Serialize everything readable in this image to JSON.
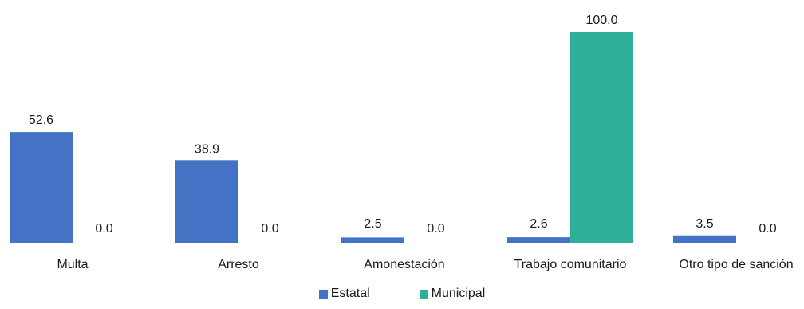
{
  "chart_data": {
    "type": "bar",
    "categories": [
      "Multa",
      "Arresto",
      "Amonestación",
      "Trabajo comunitario",
      "Otro tipo de sanción"
    ],
    "series": [
      {
        "name": "Estatal",
        "values": [
          52.6,
          38.9,
          2.5,
          2.6,
          3.5
        ],
        "color": "#4472C4"
      },
      {
        "name": "Municipal",
        "values": [
          0.0,
          0.0,
          0.0,
          100.0,
          0.0
        ],
        "color": "#2EAF9A"
      }
    ],
    "value_labels": {
      "Estatal": [
        "52.6",
        "38.9",
        "2.5",
        "2.6",
        "3.5"
      ],
      "Municipal": [
        "0.0",
        "0.0",
        "0.0",
        "100.0",
        "0.0"
      ]
    },
    "ylim": [
      0,
      100
    ],
    "grid": false,
    "legend_position": "bottom"
  }
}
